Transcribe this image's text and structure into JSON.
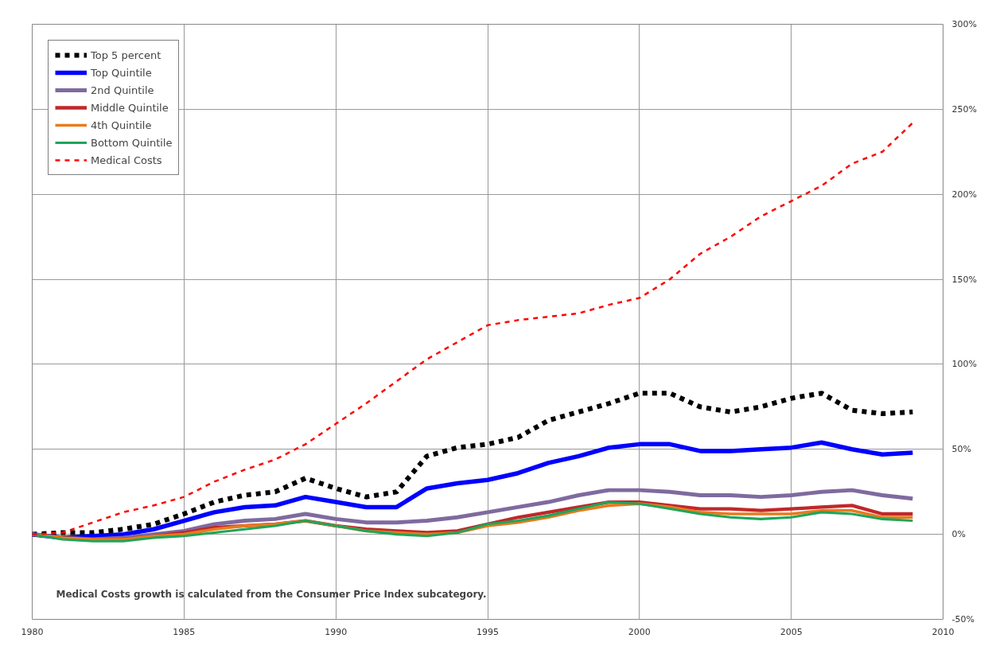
{
  "chart_data": {
    "type": "line",
    "x": [
      1980,
      1981,
      1982,
      1983,
      1984,
      1985,
      1986,
      1987,
      1988,
      1989,
      1990,
      1991,
      1992,
      1993,
      1994,
      1995,
      1996,
      1997,
      1998,
      1999,
      2000,
      2001,
      2002,
      2003,
      2004,
      2005,
      2006,
      2007,
      2008,
      2009
    ],
    "series": [
      {
        "name": "Top 5 percent",
        "color": "#000000",
        "line_style": "dashed",
        "values": [
          0,
          1,
          1,
          3,
          6,
          12,
          19,
          23,
          25,
          33,
          27,
          22,
          25,
          46,
          51,
          53,
          57,
          67,
          72,
          77,
          83,
          83,
          75,
          72,
          75,
          80,
          83,
          73,
          71,
          72
        ]
      },
      {
        "name": "Top Quintile",
        "color": "#0000ff",
        "line_style": "solid",
        "values": [
          0,
          -2,
          -1,
          0,
          3,
          8,
          13,
          16,
          17,
          22,
          19,
          16,
          16,
          27,
          30,
          32,
          36,
          42,
          46,
          51,
          53,
          53,
          49,
          49,
          50,
          51,
          54,
          50,
          47,
          48
        ]
      },
      {
        "name": "2nd Quintile",
        "color": "#7f6a9f",
        "line_style": "solid",
        "values": [
          0,
          -2,
          -3,
          -2,
          0,
          2,
          6,
          8,
          9,
          12,
          9,
          7,
          7,
          8,
          10,
          13,
          16,
          19,
          23,
          26,
          26,
          25,
          23,
          23,
          22,
          23,
          25,
          26,
          23,
          21
        ]
      },
      {
        "name": "Middle Quintile",
        "color": "#c0282a",
        "line_style": "solid",
        "values": [
          0,
          -2,
          -3,
          -3,
          -1,
          1,
          4,
          5,
          6,
          8,
          5,
          3,
          2,
          1,
          2,
          6,
          10,
          13,
          16,
          19,
          19,
          17,
          15,
          15,
          14,
          15,
          16,
          17,
          12,
          12
        ]
      },
      {
        "name": "4th Quintile",
        "color": "#e87b1e",
        "line_style": "solid",
        "values": [
          0,
          -2,
          -3,
          -3,
          -1,
          0,
          3,
          5,
          6,
          8,
          5,
          2,
          1,
          0,
          1,
          5,
          7,
          10,
          14,
          17,
          18,
          16,
          13,
          12,
          12,
          12,
          14,
          14,
          10,
          10
        ]
      },
      {
        "name": "Bottom Quintile",
        "color": "#1fa55a",
        "line_style": "solid",
        "values": [
          0,
          -3,
          -4,
          -4,
          -2,
          -1,
          1,
          3,
          5,
          8,
          5,
          2,
          0,
          -1,
          1,
          6,
          8,
          11,
          15,
          19,
          18,
          15,
          12,
          10,
          9,
          10,
          13,
          12,
          9,
          8
        ]
      },
      {
        "name": "Medical Costs",
        "color": "#ff0000",
        "line_style": "dashed",
        "values": [
          0,
          1,
          7,
          13,
          17,
          22,
          31,
          38,
          44,
          53,
          65,
          77,
          90,
          103,
          113,
          123,
          126,
          128,
          130,
          135,
          139,
          150,
          165,
          175,
          187,
          196,
          205,
          218,
          225,
          242
        ]
      }
    ],
    "xlim": [
      1980,
      2010
    ],
    "xticks": [
      1980,
      1985,
      1990,
      1995,
      2000,
      2005,
      2010
    ],
    "ylim": [
      -50,
      300
    ],
    "yticks": [
      {
        "value": -50,
        "label": "-50%"
      },
      {
        "value": 0,
        "label": "0%"
      },
      {
        "value": 50,
        "label": "50%"
      },
      {
        "value": 100,
        "label": "100%"
      },
      {
        "value": 150,
        "label": "150%"
      },
      {
        "value": 200,
        "label": "200%"
      },
      {
        "value": 250,
        "label": "250%"
      },
      {
        "value": 300,
        "label": "300%"
      }
    ],
    "grid": true,
    "legend": "top left",
    "marker": "none",
    "annotations": [
      "Medical Costs growth is calculated from the Consumer Price Index subcategory."
    ]
  }
}
